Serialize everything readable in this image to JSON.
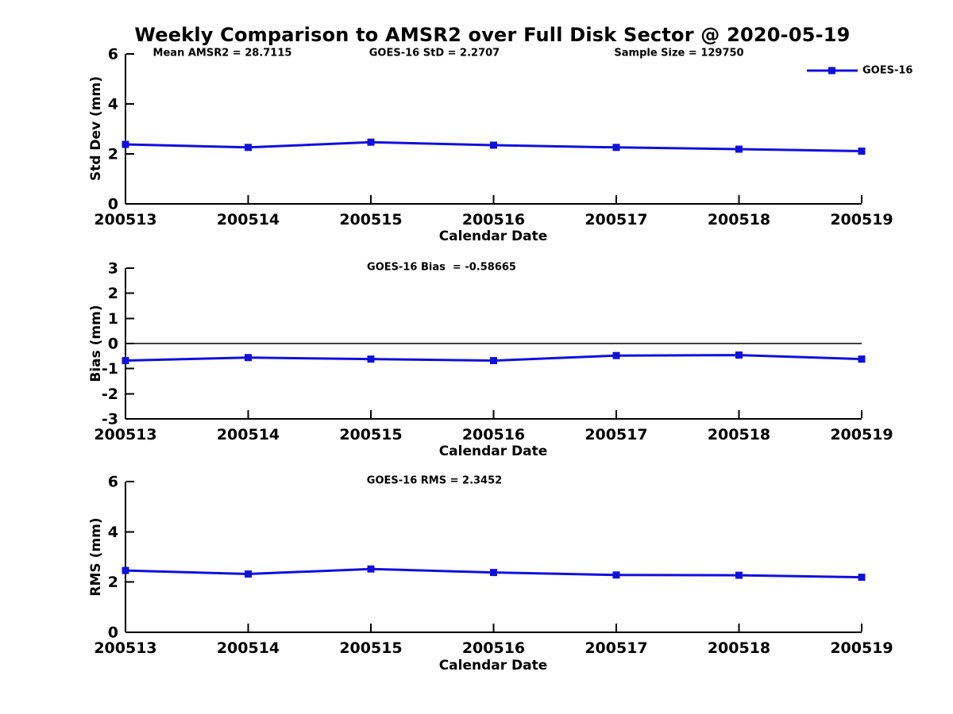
{
  "title": "Weekly Comparison to AMSR2 over Full Disk Sector @ 2020-05-19",
  "colors": {
    "line": "#1010dd",
    "axis": "#000000",
    "text": "#000000",
    "background": "#ffffff"
  },
  "legend": {
    "label": "GOES-16"
  },
  "chart_data": [
    {
      "type": "line",
      "x": [
        "200513",
        "200514",
        "200515",
        "200516",
        "200517",
        "200518",
        "200519"
      ],
      "series": [
        {
          "name": "GOES-16",
          "values": [
            2.38,
            2.26,
            2.47,
            2.35,
            2.26,
            2.19,
            2.11
          ]
        }
      ],
      "annotations": [
        "Mean AMSR2 = 28.7115",
        "GOES-16 StD = 2.2707",
        "Sample Size = 129750"
      ],
      "ylabel": "Std Dev (mm)",
      "xlabel": "Calendar Date",
      "ylim": [
        0,
        6
      ],
      "yticks": [
        0,
        2,
        4,
        6
      ],
      "legend_position": "top-right",
      "grid": false
    },
    {
      "type": "line",
      "x": [
        "200513",
        "200514",
        "200515",
        "200516",
        "200517",
        "200518",
        "200519"
      ],
      "series": [
        {
          "name": "GOES-16",
          "values": [
            -0.68,
            -0.56,
            -0.62,
            -0.68,
            -0.48,
            -0.46,
            -0.62
          ]
        }
      ],
      "annotation": "GOES-16 Bias  = -0.58665",
      "ylabel": "Bias (mm)",
      "xlabel": "Calendar Date",
      "ylim": [
        -3,
        3
      ],
      "yticks": [
        -3,
        -2,
        -1,
        0,
        1,
        2,
        3
      ],
      "zero_line": true,
      "grid": false
    },
    {
      "type": "line",
      "x": [
        "200513",
        "200514",
        "200515",
        "200516",
        "200517",
        "200518",
        "200519"
      ],
      "series": [
        {
          "name": "GOES-16",
          "values": [
            2.46,
            2.32,
            2.52,
            2.38,
            2.28,
            2.27,
            2.19
          ]
        }
      ],
      "annotation": "GOES-16 RMS = 2.3452",
      "ylabel": "RMS (mm)",
      "xlabel": "Calendar Date",
      "ylim": [
        0,
        6
      ],
      "yticks": [
        0,
        2,
        4,
        6
      ],
      "zero_line": false,
      "grid": false
    }
  ]
}
